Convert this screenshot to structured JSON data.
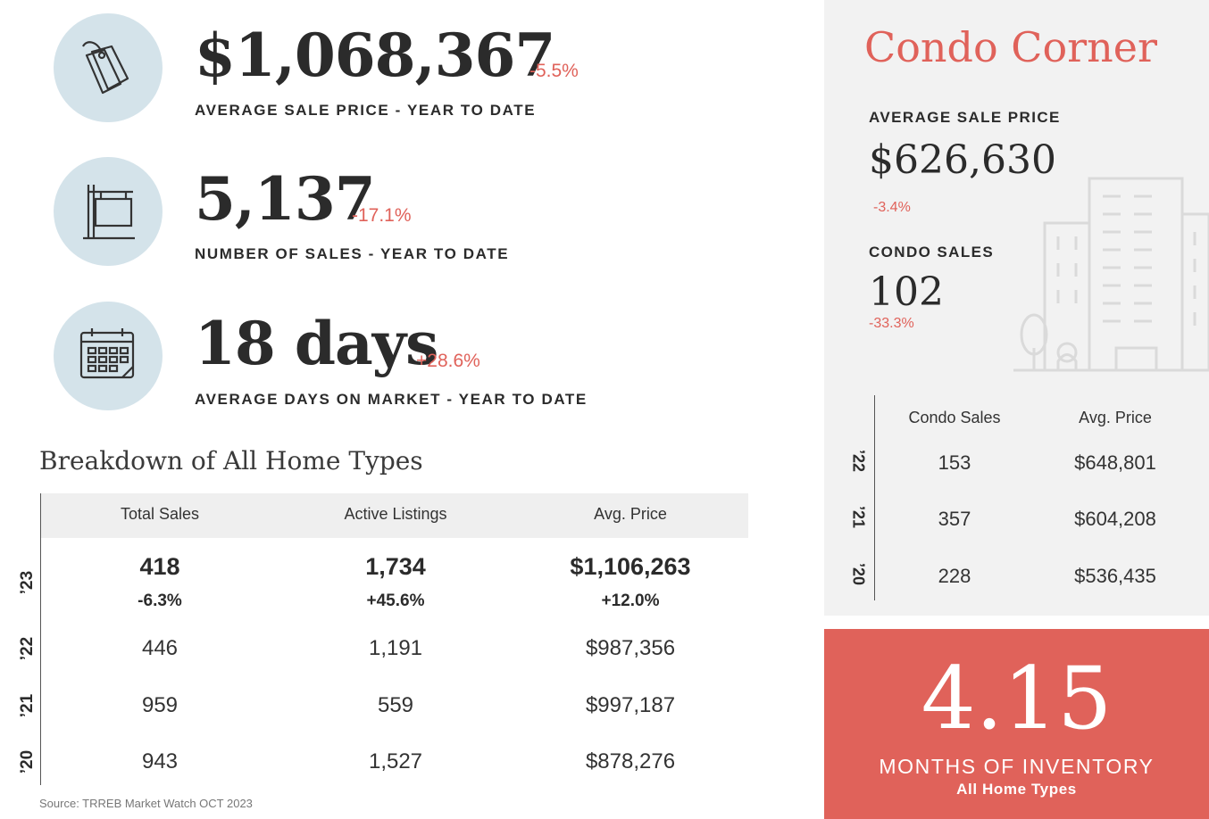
{
  "stats": [
    {
      "value": "$1,068,367",
      "change": "-5.5%",
      "label": "AVERAGE SALE PRICE - YEAR TO DATE",
      "icon": "price-tag-icon"
    },
    {
      "value": "5,137",
      "change": "-17.1%",
      "label": "NUMBER OF SALES - YEAR TO DATE",
      "icon": "sale-sign-icon"
    },
    {
      "value": "18 days",
      "change": "+28.6%",
      "label": "AVERAGE DAYS ON MARKET - YEAR TO DATE",
      "icon": "calendar-icon"
    }
  ],
  "breakdown": {
    "title": "Breakdown of All Home Types",
    "headers": [
      "Total Sales",
      "Active Listings",
      "Avg. Price"
    ],
    "rows": [
      {
        "year": "’23",
        "cells": [
          "418",
          "1,734",
          "$1,106,263"
        ],
        "changes": [
          "-6.3%",
          "+45.6%",
          "+12.0%"
        ]
      },
      {
        "year": "’22",
        "cells": [
          "446",
          "1,191",
          "$987,356"
        ]
      },
      {
        "year": "’21",
        "cells": [
          "959",
          "559",
          "$997,187"
        ]
      },
      {
        "year": "’20",
        "cells": [
          "943",
          "1,527",
          "$878,276"
        ]
      }
    ],
    "source": "Source: TRREB Market Watch OCT 2023"
  },
  "condo": {
    "title": "Condo Corner",
    "avg_label": "AVERAGE SALE PRICE",
    "avg_value": "$626,630",
    "avg_change": "-3.4%",
    "sales_label": "CONDO SALES",
    "sales_value": "102",
    "sales_change": "-33.3%",
    "headers": [
      "Condo Sales",
      "Avg. Price"
    ],
    "rows": [
      {
        "year": "’22",
        "cells": [
          "153",
          "$648,801"
        ]
      },
      {
        "year": "’21",
        "cells": [
          "357",
          "$604,208"
        ]
      },
      {
        "year": "’20",
        "cells": [
          "228",
          "$536,435"
        ]
      }
    ]
  },
  "inventory": {
    "value": "4.15",
    "label": "MONTHS OF INVENTORY",
    "sub": "All Home Types"
  },
  "colors": {
    "accent": "#e0625a",
    "icon_bg": "#d4e3ea",
    "panel_bg": "#f2f2f2"
  }
}
